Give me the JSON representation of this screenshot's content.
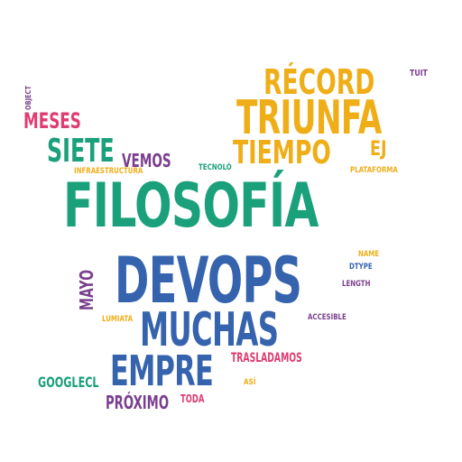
{
  "word_cloud": {
    "colors": {
      "teal": "#1aa07a",
      "blue": "#3563ad",
      "yellow": "#efae18",
      "purple": "#7a3f8e",
      "pink": "#df3c70"
    },
    "words": {
      "filosofia": "FILOSOFÍA",
      "devops": "DEVOPS",
      "triunfa": "TRIUNFA",
      "record": "RÉCORD",
      "tiempo": "TIEMPO",
      "muchas": "MUCHAS",
      "empre": "EMPRE",
      "siete": "SIETE",
      "meses": "MESES",
      "vemos": "VEMOS",
      "ej": "EJ",
      "proximo": "PRÓXIMO",
      "googlecl": "GOOGLECL",
      "trasladamos": "TRASLADAMOS",
      "toda": "TODA",
      "infraestructura": "INFRAESTRUCTURA",
      "tecnolo": "TECNOLÓ",
      "plataforma": "PLATAFORMA",
      "tuit": "TUIT",
      "name": "NAME",
      "dtype": "DTYPE",
      "length": "LENGTH",
      "accesible": "ACCESIBLE",
      "lumiata": "LUMIATA",
      "asi": "ASÍ",
      "object": "OBJECT",
      "mayo": "MAYO"
    }
  }
}
